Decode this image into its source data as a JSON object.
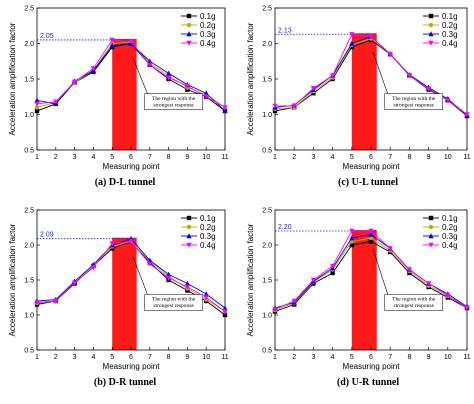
{
  "chart_data": [
    {
      "type": "line",
      "caption": "(a)  D-L tunnel",
      "xlabel": "Measuring point",
      "ylabel": "Acceleration amplification factor",
      "x": [
        1,
        2,
        3,
        4,
        5,
        6,
        7,
        8,
        9,
        10,
        11
      ],
      "xlim": [
        1,
        11
      ],
      "ylim": [
        0.5,
        2.5
      ],
      "yticks": [
        "0.5",
        "1.0",
        "1.5",
        "2.0",
        "2.5"
      ],
      "ref_value": 2.05,
      "ref_label": "2.05",
      "highlight": [
        5,
        6.3
      ],
      "annotation": [
        "The region with the",
        "strongest response"
      ],
      "legend": "top-right",
      "series": [
        {
          "name": "0.1g",
          "color": "#000000",
          "marker": "square",
          "values": [
            1.05,
            1.15,
            1.45,
            1.6,
            1.95,
            2.0,
            1.7,
            1.5,
            1.35,
            1.25,
            1.05
          ]
        },
        {
          "name": "0.2g",
          "color": "#b3b300",
          "marker": "circle",
          "values": [
            1.1,
            1.17,
            1.45,
            1.62,
            2.0,
            2.02,
            1.72,
            1.55,
            1.38,
            1.28,
            1.1
          ]
        },
        {
          "name": "0.3g",
          "color": "#0000ff",
          "marker": "triangle-up",
          "values": [
            1.2,
            1.15,
            1.47,
            1.62,
            1.97,
            2.0,
            1.75,
            1.58,
            1.42,
            1.3,
            1.05
          ]
        },
        {
          "name": "0.4g",
          "color": "#ff00ff",
          "marker": "triangle-down",
          "values": [
            1.15,
            1.18,
            1.46,
            1.65,
            2.05,
            2.03,
            1.7,
            1.52,
            1.4,
            1.25,
            1.1
          ]
        }
      ]
    },
    {
      "type": "line",
      "caption": "(c)  U-L tunnel",
      "xlabel": "Measuring point",
      "ylabel": "Acceleration amplification factor",
      "x": [
        1,
        2,
        3,
        4,
        5,
        6,
        7,
        8,
        9,
        10,
        11
      ],
      "xlim": [
        1,
        11
      ],
      "ylim": [
        0.5,
        2.5
      ],
      "yticks": [
        "0.5",
        "1.0",
        "1.5",
        "2.0",
        "2.5"
      ],
      "ref_value": 2.13,
      "ref_label": "2.13",
      "highlight": [
        5,
        6.3
      ],
      "annotation": [
        "The region with the",
        "strongest response"
      ],
      "legend": "top-right",
      "series": [
        {
          "name": "0.1g",
          "color": "#000000",
          "marker": "square",
          "values": [
            1.05,
            1.1,
            1.3,
            1.5,
            1.95,
            2.05,
            1.85,
            1.55,
            1.35,
            1.2,
            0.98
          ]
        },
        {
          "name": "0.2g",
          "color": "#b3b300",
          "marker": "circle",
          "values": [
            1.08,
            1.1,
            1.33,
            1.52,
            1.98,
            2.07,
            1.86,
            1.55,
            1.37,
            1.22,
            1.0
          ]
        },
        {
          "name": "0.3g",
          "color": "#0000ff",
          "marker": "triangle-up",
          "values": [
            1.1,
            1.13,
            1.35,
            1.55,
            2.0,
            2.1,
            1.85,
            1.56,
            1.38,
            1.22,
            0.98
          ]
        },
        {
          "name": "0.4g",
          "color": "#ff00ff",
          "marker": "triangle-down",
          "values": [
            1.12,
            1.12,
            1.37,
            1.55,
            2.13,
            2.1,
            1.85,
            1.55,
            1.36,
            1.2,
            1.0
          ]
        }
      ]
    },
    {
      "type": "line",
      "caption": "(b)  D-R tunnel",
      "xlabel": "Measuring point",
      "ylabel": "Acceleration amplification factor",
      "x": [
        1,
        2,
        3,
        4,
        5,
        6,
        7,
        8,
        9,
        10,
        11
      ],
      "xlim": [
        1,
        11
      ],
      "ylim": [
        0.5,
        2.5
      ],
      "yticks": [
        "0.5",
        "1.0",
        "1.5",
        "2.0",
        "2.5"
      ],
      "ref_value": 2.09,
      "ref_label": "2.09",
      "highlight": [
        5,
        6.3
      ],
      "annotation": [
        "The region with the",
        "strongest response"
      ],
      "legend": "top-right",
      "series": [
        {
          "name": "0.1g",
          "color": "#000000",
          "marker": "square",
          "values": [
            1.15,
            1.2,
            1.45,
            1.7,
            1.95,
            2.05,
            1.75,
            1.5,
            1.35,
            1.2,
            1.0
          ]
        },
        {
          "name": "0.2g",
          "color": "#b3b300",
          "marker": "circle",
          "values": [
            1.17,
            1.2,
            1.47,
            1.7,
            1.98,
            2.05,
            1.77,
            1.55,
            1.38,
            1.22,
            1.05
          ]
        },
        {
          "name": "0.3g",
          "color": "#0000ff",
          "marker": "triangle-up",
          "values": [
            1.2,
            1.22,
            1.48,
            1.72,
            2.0,
            2.09,
            1.78,
            1.58,
            1.45,
            1.3,
            1.1
          ]
        },
        {
          "name": "0.4g",
          "color": "#ff00ff",
          "marker": "triangle-down",
          "values": [
            1.18,
            1.2,
            1.46,
            1.68,
            2.02,
            2.05,
            1.73,
            1.53,
            1.4,
            1.25,
            1.05
          ]
        }
      ]
    },
    {
      "type": "line",
      "caption": "(d)  U-R tunnel",
      "xlabel": "Measuring point",
      "ylabel": "Acceleration amplification factor",
      "x": [
        1,
        2,
        3,
        4,
        5,
        6,
        7,
        8,
        9,
        10,
        11
      ],
      "xlim": [
        1,
        11
      ],
      "ylim": [
        0.5,
        2.5
      ],
      "yticks": [
        "0.5",
        "1.0",
        "1.5",
        "2.0",
        "2.5"
      ],
      "ref_value": 2.2,
      "ref_label": "2.20",
      "highlight": [
        5,
        6.3
      ],
      "annotation": [
        "The region with the",
        "strongest response"
      ],
      "legend": "top-right",
      "series": [
        {
          "name": "0.1g",
          "color": "#000000",
          "marker": "square",
          "values": [
            1.05,
            1.15,
            1.45,
            1.6,
            2.0,
            2.05,
            1.9,
            1.6,
            1.4,
            1.25,
            1.1
          ]
        },
        {
          "name": "0.2g",
          "color": "#b3b300",
          "marker": "circle",
          "values": [
            1.07,
            1.17,
            1.47,
            1.65,
            2.05,
            2.1,
            1.92,
            1.63,
            1.42,
            1.27,
            1.12
          ]
        },
        {
          "name": "0.3g",
          "color": "#0000ff",
          "marker": "triangle-up",
          "values": [
            1.1,
            1.18,
            1.48,
            1.67,
            2.1,
            2.15,
            1.95,
            1.65,
            1.45,
            1.3,
            1.12
          ]
        },
        {
          "name": "0.4g",
          "color": "#ff00ff",
          "marker": "triangle-down",
          "values": [
            1.08,
            1.2,
            1.5,
            1.7,
            2.2,
            2.2,
            1.95,
            1.65,
            1.45,
            1.28,
            1.1
          ]
        }
      ]
    }
  ]
}
